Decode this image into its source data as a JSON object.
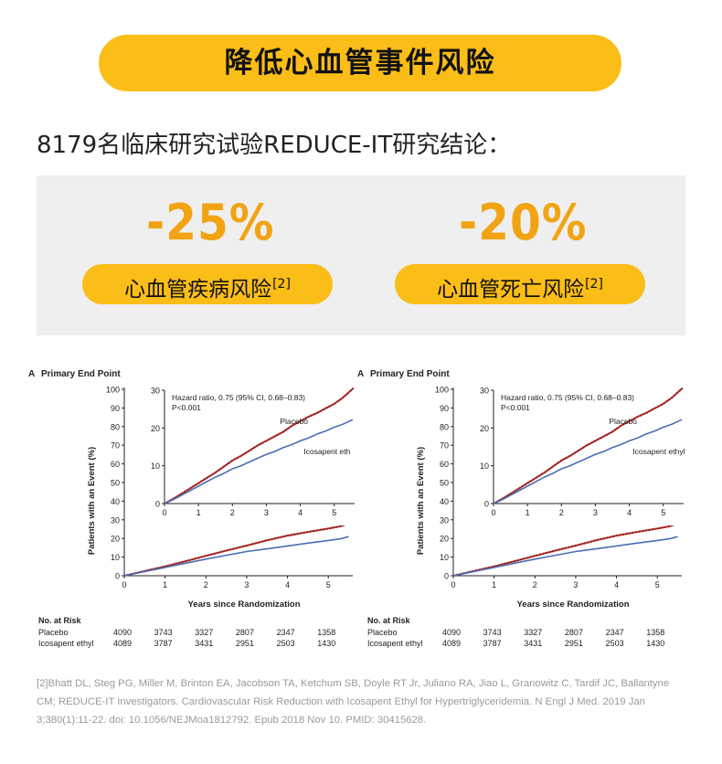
{
  "header": {
    "title": "降低心血管事件风险",
    "subtitle": "8179名临床研究试验REDUCE-IT研究结论："
  },
  "highlights": [
    {
      "value": "-25%",
      "label": "心血管疾病风险",
      "ref": "[2]"
    },
    {
      "value": "-20%",
      "label": "心血管死亡风险",
      "ref": "[2]"
    }
  ],
  "colors": {
    "accent": "#fbbd17",
    "accent_text": "#f2a314",
    "placebo": "#a3231f",
    "icosapent": "#4a6fb5",
    "panel": "#efefef"
  },
  "chart_data": [
    {
      "type": "line",
      "panel_label": "A",
      "title": "Primary End Point",
      "xlabel": "Years since Randomization",
      "ylabel": "Patients with an Event (%)",
      "xlim": [
        0,
        5.6
      ],
      "ylim": [
        0,
        100
      ],
      "xticks": [
        "0",
        "1",
        "2",
        "3",
        "4",
        "5"
      ],
      "yticks": [
        "0",
        "10",
        "20",
        "30",
        "40",
        "50",
        "60",
        "70",
        "80",
        "90",
        "100"
      ],
      "series": [
        {
          "name": "Placebo",
          "style": "dotted",
          "x": [
            0,
            0.5,
            1,
            1.5,
            2,
            2.5,
            3,
            3.5,
            4,
            4.5,
            5,
            5.3,
            5.5
          ],
          "y": [
            0,
            2.5,
            5,
            7.8,
            10.7,
            13.5,
            16.2,
            19,
            21.5,
            23.5,
            25.3,
            26.5,
            28
          ]
        },
        {
          "name": "Icosapent ethyl",
          "style": "solid",
          "x": [
            0,
            0.5,
            1,
            1.5,
            2,
            2.5,
            3,
            3.5,
            4,
            4.5,
            5,
            5.3,
            5.5
          ],
          "y": [
            0,
            2.2,
            4.4,
            6.7,
            8.9,
            11,
            13,
            14.4,
            16,
            17.5,
            18.9,
            19.8,
            21
          ]
        }
      ],
      "inset": {
        "xlim": [
          0,
          5.6
        ],
        "ylim": [
          0,
          30
        ],
        "xticks": [
          "0",
          "1",
          "2",
          "3",
          "4",
          "5"
        ],
        "yticks": [
          "0",
          "10",
          "20",
          "30"
        ],
        "annotation_1": "Hazard ratio, 0.75 (95% CI, 0.68–0.83)",
        "annotation_2": "P<0.001",
        "placebo_label": "Placebo",
        "icosapent_label": "Icosapent eth"
      },
      "risk_table": {
        "heading": "No. at Risk",
        "rows": [
          {
            "name": "Placebo",
            "values": [
              "4090",
              "3743",
              "3327",
              "2807",
              "2347",
              "1358"
            ]
          },
          {
            "name": "Icosapent ethyl",
            "values": [
              "4089",
              "3787",
              "3431",
              "2951",
              "2503",
              "1430"
            ]
          }
        ]
      }
    },
    {
      "type": "line",
      "panel_label": "A",
      "title": "Primary End Point",
      "xlabel": "Years since Randomization",
      "ylabel": "Patients with an Event (%)",
      "xlim": [
        0,
        5.6
      ],
      "ylim": [
        0,
        100
      ],
      "xticks": [
        "0",
        "1",
        "2",
        "3",
        "4",
        "5"
      ],
      "yticks": [
        "0",
        "10",
        "20",
        "30",
        "40",
        "50",
        "60",
        "70",
        "80",
        "90",
        "100"
      ],
      "series": [
        {
          "name": "Placebo",
          "style": "dotted",
          "x": [
            0,
            0.5,
            1,
            1.5,
            2,
            2.5,
            3,
            3.5,
            4,
            4.5,
            5,
            5.3,
            5.5
          ],
          "y": [
            0,
            2.5,
            5,
            7.8,
            10.7,
            13.5,
            16.2,
            19,
            21.5,
            23.5,
            25.3,
            26.5,
            28
          ]
        },
        {
          "name": "Icosapent ethyl",
          "style": "solid",
          "x": [
            0,
            0.5,
            1,
            1.5,
            2,
            2.5,
            3,
            3.5,
            4,
            4.5,
            5,
            5.3,
            5.5
          ],
          "y": [
            0,
            2.2,
            4.4,
            6.7,
            8.9,
            11,
            13,
            14.4,
            16,
            17.5,
            18.9,
            19.8,
            21
          ]
        }
      ],
      "inset": {
        "xlim": [
          0,
          5.6
        ],
        "ylim": [
          0,
          30
        ],
        "xticks": [
          "0",
          "1",
          "2",
          "3",
          "4",
          "5"
        ],
        "yticks": [
          "0",
          "10",
          "20",
          "30"
        ],
        "annotation_1": "Hazard ratio, 0.75 (95% CI, 0.68–0.83)",
        "annotation_2": "P<0.001",
        "placebo_label": "Placebo",
        "icosapent_label": "Icosapent ethyl"
      },
      "risk_table": {
        "heading": "No. at Risk",
        "rows": [
          {
            "name": "Placebo",
            "values": [
              "4090",
              "3743",
              "3327",
              "2807",
              "2347",
              "1358"
            ]
          },
          {
            "name": "Icosapent ethyl",
            "values": [
              "4089",
              "3787",
              "3431",
              "2951",
              "2503",
              "1430"
            ]
          }
        ]
      }
    }
  ],
  "reference": "[2]Bhatt DL, Steg PG, Miller M, Brinton EA, Jacobson TA, Ketchum SB, Doyle RT Jr, Juliano RA, Jiao L, Granowitz C, Tardif JC, Ballantyne CM; REDUCE-IT Investigators. Cardiovascular Risk Reduction with Icosapent Ethyl for Hypertriglyceridemia. N Engl J Med. 2019 Jan 3;380(1):11-22. doi: 10.1056/NEJMoa1812792. Epub 2018 Nov 10. PMID: 30415628."
}
